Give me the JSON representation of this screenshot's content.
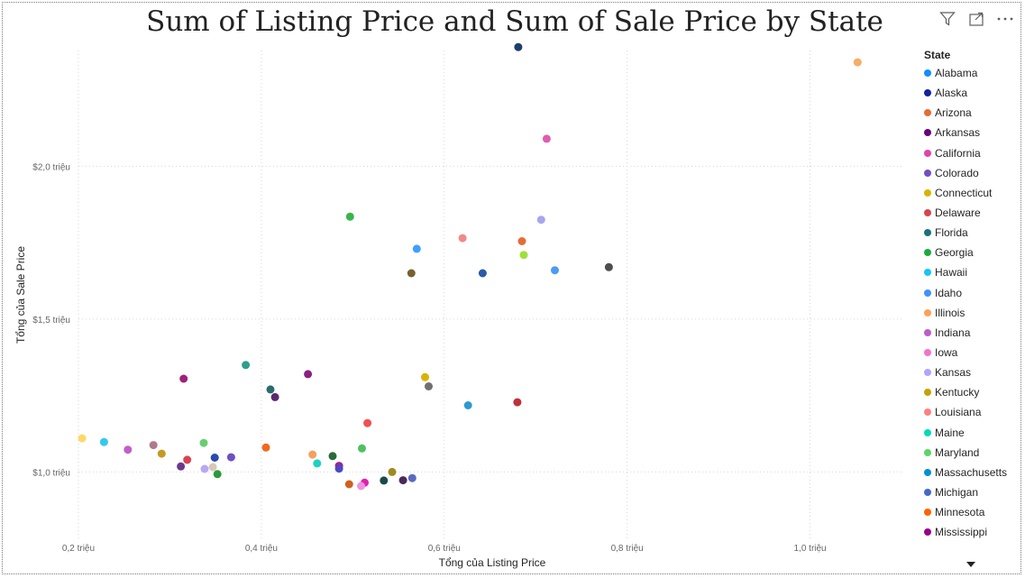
{
  "toolbar": {
    "filter_icon": "filter-icon",
    "focus_icon": "focus-mode-icon",
    "more_icon": "more-options-icon"
  },
  "legend": {
    "title": "State",
    "items": [
      {
        "label": "Alabama",
        "color": "#118DFF"
      },
      {
        "label": "Alaska",
        "color": "#12239E"
      },
      {
        "label": "Arizona",
        "color": "#E66C37"
      },
      {
        "label": "Arkansas",
        "color": "#6B007B"
      },
      {
        "label": "California",
        "color": "#E044A7"
      },
      {
        "label": "Colorado",
        "color": "#744EC2"
      },
      {
        "label": "Connecticut",
        "color": "#D9B300"
      },
      {
        "label": "Delaware",
        "color": "#D64550"
      },
      {
        "label": "Florida",
        "color": "#197278"
      },
      {
        "label": "Georgia",
        "color": "#1AAB40"
      },
      {
        "label": "Hawaii",
        "color": "#15C6F4"
      },
      {
        "label": "Idaho",
        "color": "#4092FF"
      },
      {
        "label": "Illinois",
        "color": "#FFA058"
      },
      {
        "label": "Indiana",
        "color": "#BE5DC9"
      },
      {
        "label": "Iowa",
        "color": "#F472D0"
      },
      {
        "label": "Kansas",
        "color": "#B5A1FF"
      },
      {
        "label": "Kentucky",
        "color": "#C4A200"
      },
      {
        "label": "Louisiana",
        "color": "#FF8080"
      },
      {
        "label": "Maine",
        "color": "#00DBBC"
      },
      {
        "label": "Maryland",
        "color": "#5BD667"
      },
      {
        "label": "Massachusetts",
        "color": "#0091D5"
      },
      {
        "label": "Michigan",
        "color": "#4668C5"
      },
      {
        "label": "Minnesota",
        "color": "#FF6300"
      },
      {
        "label": "Mississippi",
        "color": "#99008A"
      }
    ]
  },
  "chart_data": {
    "type": "scatter",
    "title": "Sum of Listing Price and Sum of Sale Price by State",
    "xlabel": "Tổng của Listing Price",
    "ylabel": "Tổng của Sale Price",
    "xlim": [
      0.2,
      1.1
    ],
    "ylim": [
      0.78,
      2.42
    ],
    "x_ticks": [
      0.2,
      0.4,
      0.6,
      0.8,
      1.0
    ],
    "x_tick_labels": [
      "0,2 triệu",
      "0,4 triệu",
      "0,6 triệu",
      "0,8 triệu",
      "1,0 triệu"
    ],
    "y_ticks": [
      1.0,
      1.5,
      2.0
    ],
    "y_tick_labels": [
      "$1,0 triệu",
      "$1,5 triệu",
      "$2,0 triệu"
    ],
    "grid": true,
    "legend_position": "right",
    "points": [
      {
        "x": 0.681,
        "y": 2.39,
        "color": "#1B3E6E"
      },
      {
        "x": 1.052,
        "y": 2.34,
        "color": "#F6AD68"
      },
      {
        "x": 0.712,
        "y": 2.09,
        "color": "#E05CB0"
      },
      {
        "x": 0.497,
        "y": 1.835,
        "color": "#3AB54A"
      },
      {
        "x": 0.706,
        "y": 1.825,
        "color": "#A6A6F0"
      },
      {
        "x": 0.62,
        "y": 1.765,
        "color": "#F08A8A"
      },
      {
        "x": 0.685,
        "y": 1.755,
        "color": "#E66C37"
      },
      {
        "x": 0.57,
        "y": 1.73,
        "color": "#3DA0FF"
      },
      {
        "x": 0.687,
        "y": 1.71,
        "color": "#A0E03A"
      },
      {
        "x": 0.78,
        "y": 1.67,
        "color": "#4D4D4D"
      },
      {
        "x": 0.721,
        "y": 1.66,
        "color": "#4B9BF5"
      },
      {
        "x": 0.642,
        "y": 1.65,
        "color": "#2A5AA8"
      },
      {
        "x": 0.564,
        "y": 1.65,
        "color": "#7A6030"
      },
      {
        "x": 0.383,
        "y": 1.35,
        "color": "#2E9E8E"
      },
      {
        "x": 0.451,
        "y": 1.32,
        "color": "#8A2080"
      },
      {
        "x": 0.315,
        "y": 1.305,
        "color": "#A0207A"
      },
      {
        "x": 0.579,
        "y": 1.31,
        "color": "#D9B300"
      },
      {
        "x": 0.583,
        "y": 1.28,
        "color": "#707070"
      },
      {
        "x": 0.41,
        "y": 1.27,
        "color": "#2A6B6E"
      },
      {
        "x": 0.415,
        "y": 1.245,
        "color": "#5A2A6A"
      },
      {
        "x": 0.68,
        "y": 1.228,
        "color": "#C0303A"
      },
      {
        "x": 0.626,
        "y": 1.218,
        "color": "#2A9AD0"
      },
      {
        "x": 0.516,
        "y": 1.16,
        "color": "#F05050"
      },
      {
        "x": 0.204,
        "y": 1.11,
        "color": "#FFD866"
      },
      {
        "x": 0.228,
        "y": 1.098,
        "color": "#33C8F0"
      },
      {
        "x": 0.337,
        "y": 1.095,
        "color": "#66D070"
      },
      {
        "x": 0.282,
        "y": 1.088,
        "color": "#B07A8A"
      },
      {
        "x": 0.254,
        "y": 1.073,
        "color": "#C060C8"
      },
      {
        "x": 0.405,
        "y": 1.08,
        "color": "#F06A20"
      },
      {
        "x": 0.51,
        "y": 1.077,
        "color": "#50C060"
      },
      {
        "x": 0.291,
        "y": 1.06,
        "color": "#C49A20"
      },
      {
        "x": 0.456,
        "y": 1.057,
        "color": "#F6A060"
      },
      {
        "x": 0.478,
        "y": 1.052,
        "color": "#2A6A3A"
      },
      {
        "x": 0.319,
        "y": 1.04,
        "color": "#D64550"
      },
      {
        "x": 0.349,
        "y": 1.047,
        "color": "#2A4AB0"
      },
      {
        "x": 0.367,
        "y": 1.048,
        "color": "#7050C0"
      },
      {
        "x": 0.461,
        "y": 1.028,
        "color": "#20D0C0"
      },
      {
        "x": 0.312,
        "y": 1.018,
        "color": "#6A3A8A"
      },
      {
        "x": 0.485,
        "y": 1.02,
        "color": "#A02090"
      },
      {
        "x": 0.338,
        "y": 1.01,
        "color": "#B8A8F0"
      },
      {
        "x": 0.347,
        "y": 1.016,
        "color": "#D8C8B8"
      },
      {
        "x": 0.485,
        "y": 1.011,
        "color": "#4A4AC0"
      },
      {
        "x": 0.543,
        "y": 1.0,
        "color": "#A08A20"
      },
      {
        "x": 0.352,
        "y": 0.993,
        "color": "#2A9A3A"
      },
      {
        "x": 0.565,
        "y": 0.98,
        "color": "#5A6AC0"
      },
      {
        "x": 0.534,
        "y": 0.972,
        "color": "#1A4A4A"
      },
      {
        "x": 0.555,
        "y": 0.973,
        "color": "#4A2A5A"
      },
      {
        "x": 0.513,
        "y": 0.965,
        "color": "#E020B0"
      },
      {
        "x": 0.496,
        "y": 0.96,
        "color": "#D06020"
      },
      {
        "x": 0.509,
        "y": 0.954,
        "color": "#F090E0"
      }
    ]
  }
}
